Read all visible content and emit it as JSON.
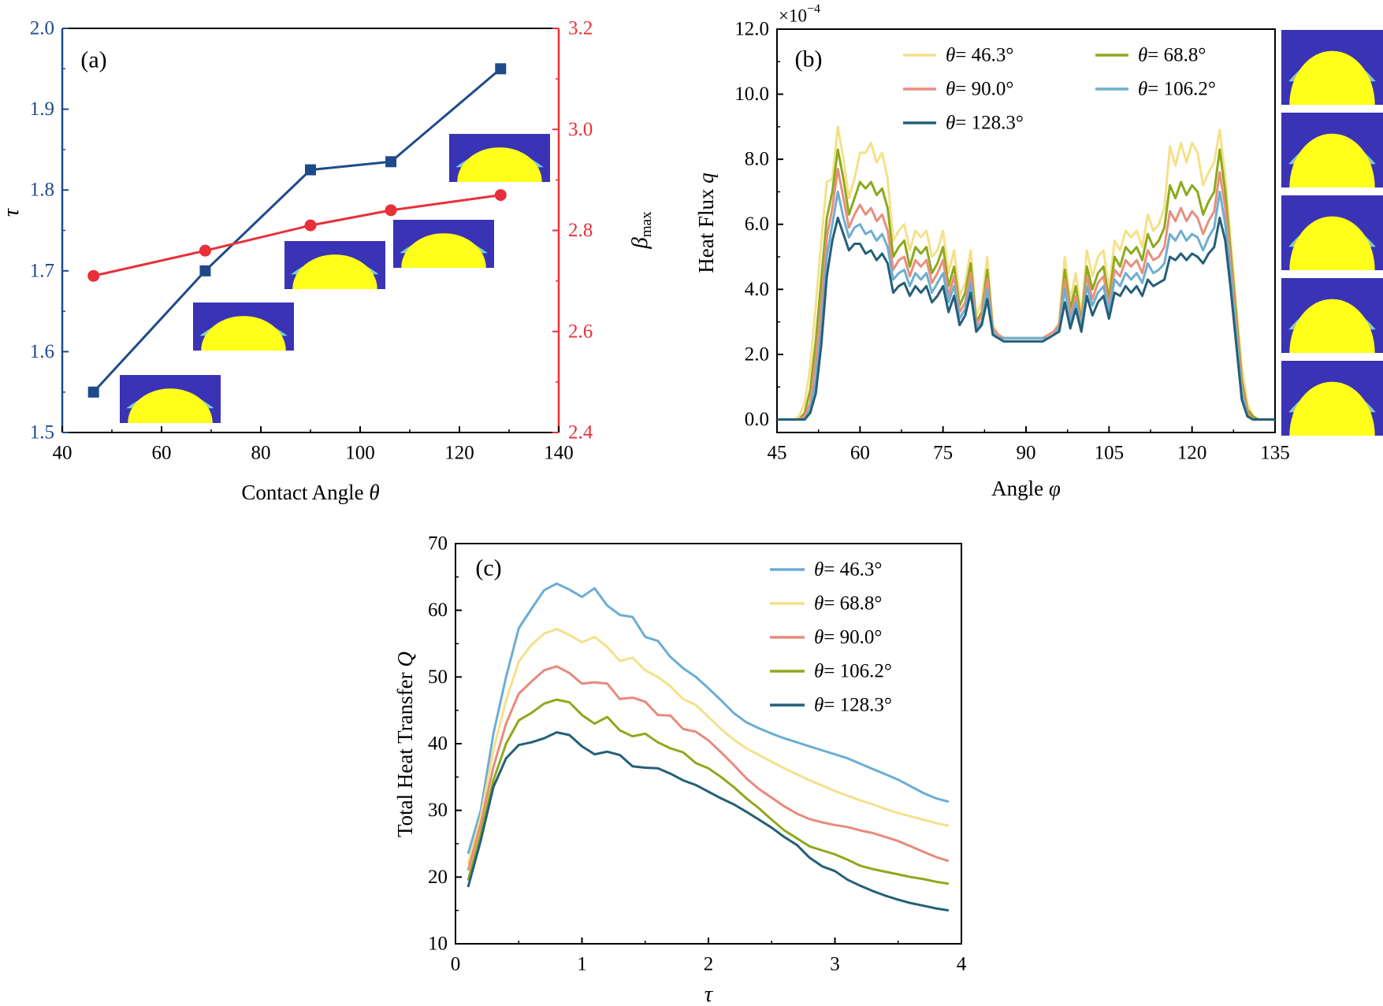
{
  "colors": {
    "axis_tau": "#1f4a8a",
    "axis_beta": "#e8303a",
    "inset_bg": "#3a33b5",
    "inset_drop": "#f2a844",
    "inset_edge": "#6fd1d8",
    "inset_solid": "#ffff1a",
    "series_b": [
      "#f5e08a",
      "#8da91c",
      "#e98e7d",
      "#6eaed0",
      "#245f78"
    ],
    "series_c": [
      "#6aaed3",
      "#f5e08a",
      "#e88a7c",
      "#8da91c",
      "#245f78"
    ]
  },
  "chart_data": [
    {
      "id": "a",
      "type": "line",
      "panel_label": "(a)",
      "xlabel": "Contact Angle",
      "xlabel_symbol": "θ",
      "ylabel": "τ",
      "y2label": "β",
      "y2label_sub": "max",
      "xlim": [
        40,
        140
      ],
      "ylim": [
        1.5,
        2.0
      ],
      "y2lim": [
        2.4,
        3.2
      ],
      "xticks": [
        "40",
        "60",
        "80",
        "100",
        "120",
        "140"
      ],
      "yticks": [
        "1.5",
        "1.6",
        "1.7",
        "1.8",
        "1.9",
        "2.0"
      ],
      "y2ticks": [
        "2.4",
        "2.6",
        "2.8",
        "3.0",
        "3.2"
      ],
      "x": [
        46.3,
        68.8,
        90.0,
        106.2,
        128.3
      ],
      "series": [
        {
          "name": "τ",
          "axis": "left",
          "marker": "square",
          "values": [
            1.55,
            1.7,
            1.825,
            1.835,
            1.95
          ]
        },
        {
          "name": "β_max",
          "axis": "right",
          "marker": "circle",
          "values": [
            2.71,
            2.76,
            2.81,
            2.84,
            2.87
          ]
        }
      ]
    },
    {
      "id": "b",
      "type": "line",
      "panel_label": "(b)",
      "xlabel": "Angle",
      "xlabel_symbol": "φ",
      "ylabel": "Heat Flux",
      "ylabel_symbol": "q",
      "multiplier": "×10",
      "multiplier_exp": "−4",
      "xlim": [
        45,
        135
      ],
      "ylim": [
        -0.4,
        12.0
      ],
      "xticks": [
        "45",
        "60",
        "75",
        "90",
        "105",
        "120",
        "135"
      ],
      "yticks": [
        "0.0",
        "2.0",
        "4.0",
        "6.0",
        "8.0",
        "10.0",
        "12.0"
      ],
      "x": [
        45,
        46,
        47,
        48,
        49,
        50,
        51,
        52,
        53,
        54,
        55,
        56,
        57,
        58,
        59,
        60,
        61,
        62,
        63,
        64,
        65,
        66,
        67,
        68,
        69,
        70,
        71,
        72,
        73,
        74,
        75,
        76,
        77,
        78,
        79,
        80,
        81,
        82,
        83,
        84,
        85,
        86,
        87,
        88,
        89,
        90,
        91,
        92,
        93,
        94,
        95,
        96,
        97,
        98,
        99,
        100,
        101,
        102,
        103,
        104,
        105,
        106,
        107,
        108,
        109,
        110,
        111,
        112,
        113,
        114,
        115,
        116,
        117,
        118,
        119,
        120,
        121,
        122,
        123,
        124,
        125,
        126,
        127,
        128,
        129,
        130,
        131,
        132,
        133,
        134,
        135
      ],
      "series": [
        {
          "name": "θ = 46.3°",
          "legend_value": "= 46.3°",
          "values": [
            0,
            0,
            0,
            0,
            0.1,
            0.5,
            1.6,
            3.5,
            5.5,
            7.3,
            7.4,
            9.0,
            8.0,
            6.8,
            7.4,
            8.2,
            8.2,
            8.5,
            7.9,
            8.2,
            7.4,
            5.5,
            5.8,
            6.0,
            5.2,
            5.8,
            5.6,
            5.8,
            5.0,
            5.2,
            5.8,
            4.5,
            5.2,
            3.8,
            4.2,
            5.2,
            3.2,
            3.6,
            5.0,
            2.9,
            2.6,
            2.5,
            2.5,
            2.5,
            2.5,
            2.5,
            2.5,
            2.5,
            2.5,
            2.6,
            2.7,
            3.0,
            5.0,
            3.7,
            4.5,
            3.2,
            5.2,
            4.4,
            5.0,
            5.2,
            4.0,
            5.5,
            5.2,
            5.8,
            5.6,
            5.8,
            5.3,
            6.3,
            5.8,
            6.0,
            6.5,
            8.4,
            7.8,
            8.5,
            7.9,
            8.5,
            8.2,
            7.2,
            7.6,
            7.9,
            8.9,
            7.5,
            5.5,
            3.5,
            1.6,
            0.5,
            0.1,
            0,
            0,
            0,
            0
          ]
        },
        {
          "name": "θ = 68.8°",
          "legend_value": "= 68.8°",
          "values": [
            0,
            0,
            0,
            0,
            0,
            0.2,
            0.9,
            2.4,
            4.3,
            6.2,
            7.0,
            8.3,
            7.4,
            6.3,
            6.8,
            7.3,
            7.1,
            7.3,
            6.9,
            7.1,
            6.5,
            5.0,
            5.3,
            5.5,
            4.7,
            5.3,
            5.1,
            5.3,
            4.5,
            4.8,
            5.3,
            4.1,
            4.7,
            3.5,
            3.9,
            4.8,
            3.0,
            3.3,
            4.6,
            2.8,
            2.6,
            2.5,
            2.5,
            2.5,
            2.5,
            2.5,
            2.5,
            2.5,
            2.5,
            2.6,
            2.7,
            2.9,
            4.6,
            3.4,
            4.1,
            3.0,
            4.7,
            4.0,
            4.5,
            4.7,
            3.7,
            5.0,
            4.7,
            5.3,
            5.1,
            5.3,
            4.9,
            5.7,
            5.3,
            5.5,
            5.9,
            7.2,
            6.8,
            7.3,
            6.9,
            7.2,
            7.0,
            6.3,
            6.7,
            7.0,
            8.3,
            7.0,
            5.1,
            3.2,
            1.2,
            0.3,
            0.1,
            0,
            0,
            0,
            0
          ]
        },
        {
          "name": "θ = 90.0°",
          "legend_value": "= 90.0°",
          "values": [
            0,
            0,
            0,
            0,
            0,
            0.1,
            0.5,
            1.8,
            3.5,
            5.6,
            6.5,
            7.7,
            6.8,
            5.9,
            6.3,
            6.6,
            6.3,
            6.5,
            6.1,
            6.3,
            5.8,
            4.6,
            4.9,
            5.0,
            4.4,
            4.9,
            4.7,
            4.9,
            4.2,
            4.5,
            4.9,
            3.8,
            4.4,
            3.3,
            3.6,
            4.5,
            2.9,
            3.2,
            4.3,
            2.8,
            2.6,
            2.5,
            2.5,
            2.5,
            2.5,
            2.5,
            2.5,
            2.5,
            2.5,
            2.6,
            2.7,
            2.9,
            4.3,
            3.2,
            3.8,
            2.9,
            4.4,
            3.7,
            4.2,
            4.4,
            3.5,
            4.6,
            4.4,
            4.9,
            4.7,
            4.9,
            4.5,
            5.2,
            4.9,
            5.0,
            5.3,
            6.4,
            6.1,
            6.5,
            6.1,
            6.4,
            6.2,
            5.7,
            6.1,
            6.4,
            7.6,
            6.5,
            4.8,
            2.9,
            1.0,
            0.2,
            0.0,
            0,
            0,
            0,
            0
          ]
        },
        {
          "name": "θ = 106.2°",
          "legend_value": "= 106.2°",
          "values": [
            0,
            0,
            0,
            0,
            0,
            0,
            0.3,
            1.2,
            2.8,
            5.0,
            6.0,
            7.0,
            6.2,
            5.6,
            5.9,
            6.0,
            5.7,
            5.8,
            5.5,
            5.7,
            5.3,
            4.3,
            4.5,
            4.6,
            4.1,
            4.5,
            4.3,
            4.5,
            3.9,
            4.2,
            4.5,
            3.6,
            4.1,
            3.1,
            3.4,
            4.2,
            2.8,
            3.0,
            4.0,
            2.7,
            2.5,
            2.5,
            2.5,
            2.5,
            2.5,
            2.5,
            2.5,
            2.5,
            2.5,
            2.5,
            2.6,
            2.8,
            4.0,
            3.0,
            3.6,
            2.8,
            4.1,
            3.5,
            3.9,
            4.1,
            3.3,
            4.3,
            4.1,
            4.5,
            4.3,
            4.5,
            4.2,
            4.8,
            4.5,
            4.6,
            4.8,
            5.7,
            5.5,
            5.8,
            5.5,
            5.7,
            5.6,
            5.2,
            5.6,
            5.9,
            7.0,
            6.0,
            4.4,
            2.6,
            0.8,
            0.1,
            0,
            0,
            0,
            0,
            0
          ]
        },
        {
          "name": "θ = 128.3°",
          "legend_value": "= 128.3°",
          "values": [
            0,
            0,
            0,
            0,
            0,
            0,
            0.2,
            0.8,
            2.3,
            4.4,
            5.5,
            6.2,
            5.7,
            5.2,
            5.4,
            5.4,
            5.1,
            5.2,
            4.9,
            5.1,
            4.8,
            3.9,
            4.1,
            4.2,
            3.8,
            4.1,
            3.9,
            4.1,
            3.6,
            3.8,
            4.1,
            3.3,
            3.8,
            2.9,
            3.2,
            3.9,
            2.7,
            2.9,
            3.7,
            2.6,
            2.5,
            2.4,
            2.4,
            2.4,
            2.4,
            2.4,
            2.4,
            2.4,
            2.4,
            2.5,
            2.6,
            2.7,
            3.6,
            2.8,
            3.4,
            2.7,
            3.8,
            3.2,
            3.6,
            3.8,
            3.1,
            3.9,
            3.8,
            4.1,
            3.9,
            4.1,
            3.8,
            4.3,
            4.1,
            4.2,
            4.3,
            5.0,
            4.9,
            5.1,
            4.9,
            5.1,
            5.0,
            4.8,
            5.1,
            5.3,
            6.2,
            5.5,
            4.0,
            2.3,
            0.6,
            0.1,
            0,
            0,
            0,
            0,
            0
          ]
        }
      ]
    },
    {
      "id": "c",
      "type": "line",
      "panel_label": "(c)",
      "xlabel": "τ",
      "ylabel": "Total Heat Transfer",
      "ylabel_symbol": "Q",
      "xlim": [
        0,
        4
      ],
      "ylim": [
        10,
        70
      ],
      "xticks": [
        "0",
        "1",
        "2",
        "3",
        "4"
      ],
      "yticks": [
        "10",
        "20",
        "30",
        "40",
        "50",
        "60",
        "70"
      ],
      "x": [
        0.1,
        0.2,
        0.3,
        0.4,
        0.5,
        0.6,
        0.7,
        0.8,
        0.9,
        1.0,
        1.1,
        1.2,
        1.3,
        1.4,
        1.5,
        1.6,
        1.7,
        1.8,
        1.9,
        2.0,
        2.1,
        2.2,
        2.3,
        2.4,
        2.5,
        2.6,
        2.7,
        2.8,
        2.9,
        3.0,
        3.1,
        3.2,
        3.3,
        3.4,
        3.5,
        3.6,
        3.7,
        3.8,
        3.9
      ],
      "series": [
        {
          "name": "θ = 46.3°",
          "legend_value": "= 46.3°",
          "values": [
            23.5,
            30.0,
            41.5,
            50.0,
            57.3,
            60.2,
            63.0,
            64.0,
            63.1,
            62.0,
            63.3,
            60.7,
            59.3,
            59.0,
            56.0,
            55.4,
            53.0,
            51.3,
            50.0,
            48.3,
            46.5,
            44.6,
            43.2,
            42.3,
            41.5,
            40.8,
            40.2,
            39.6,
            39.0,
            38.4,
            37.8,
            37.0,
            36.2,
            35.4,
            34.6,
            33.6,
            32.6,
            31.8,
            31.3
          ]
        },
        {
          "name": "θ = 68.8°",
          "legend_value": "= 68.8°",
          "values": [
            22.0,
            29.0,
            39.0,
            46.5,
            52.3,
            54.8,
            56.5,
            57.2,
            56.3,
            55.2,
            56.0,
            54.5,
            52.4,
            52.9,
            51.0,
            50.0,
            48.6,
            46.7,
            45.8,
            44.0,
            42.2,
            40.6,
            39.3,
            38.3,
            37.3,
            36.3,
            35.4,
            34.5,
            33.7,
            32.9,
            32.2,
            31.5,
            30.9,
            30.2,
            29.6,
            29.1,
            28.6,
            28.1,
            27.7
          ]
        },
        {
          "name": "θ = 90.0°",
          "legend_value": "= 90.0°",
          "values": [
            21.0,
            28.0,
            36.5,
            43.0,
            47.5,
            49.3,
            51.0,
            51.6,
            50.6,
            49.0,
            49.2,
            49.0,
            46.7,
            46.9,
            46.3,
            44.3,
            44.2,
            42.2,
            41.8,
            40.5,
            38.7,
            36.8,
            34.8,
            33.2,
            31.9,
            30.6,
            29.5,
            28.7,
            28.2,
            27.8,
            27.5,
            27.0,
            26.6,
            26.0,
            25.4,
            24.6,
            23.8,
            23.0,
            22.4
          ]
        },
        {
          "name": "θ = 106.2°",
          "legend_value": "= 106.2°",
          "values": [
            19.5,
            26.5,
            34.5,
            40.0,
            43.5,
            44.6,
            46.0,
            46.6,
            46.2,
            44.3,
            43.0,
            44.0,
            42.0,
            41.1,
            41.5,
            40.2,
            39.3,
            38.7,
            37.1,
            36.3,
            35.0,
            33.5,
            31.8,
            30.3,
            28.6,
            27.0,
            25.8,
            24.6,
            24.0,
            23.4,
            22.6,
            21.7,
            21.2,
            20.8,
            20.4,
            20.0,
            19.7,
            19.3,
            19.0
          ]
        },
        {
          "name": "θ = 128.3°",
          "legend_value": "= 128.3°",
          "values": [
            18.5,
            25.5,
            33.5,
            37.8,
            39.8,
            40.2,
            40.8,
            41.7,
            41.3,
            39.6,
            38.4,
            38.8,
            38.3,
            36.6,
            36.4,
            36.3,
            35.5,
            34.5,
            33.8,
            32.8,
            31.8,
            30.9,
            29.8,
            28.6,
            27.4,
            26.0,
            24.8,
            22.9,
            21.6,
            20.9,
            19.6,
            18.7,
            17.9,
            17.2,
            16.6,
            16.1,
            15.7,
            15.3,
            15.0
          ]
        }
      ]
    }
  ]
}
